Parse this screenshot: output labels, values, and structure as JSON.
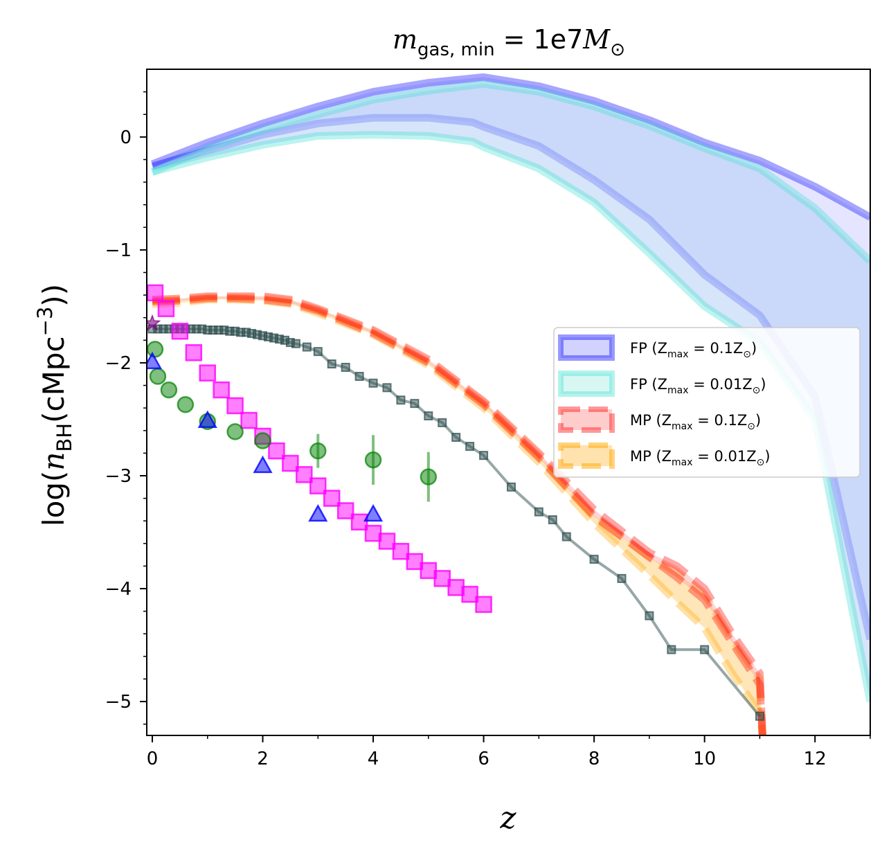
{
  "chart_data": {
    "type": "line",
    "title": "m_gas,min = 1e7 M⊙",
    "title_parts": {
      "m": "m",
      "sub": "gas, min",
      "eq": " = 1e7",
      "M": "M",
      "sun": "⊙"
    },
    "xlabel": "z",
    "ylabel": "log(n_BH(cMpc^-3))",
    "ylabel_parts": {
      "pre": "log(",
      "n": "n",
      "sub": "BH",
      "mid": "(cMpc",
      "sup": "−3",
      "post": "))"
    },
    "xlim": [
      -0.1,
      13.0
    ],
    "ylim": [
      -5.3,
      0.6
    ],
    "xticks": [
      0,
      2,
      4,
      6,
      8,
      10,
      12
    ],
    "xtick_labels": [
      "0",
      "2",
      "4",
      "6",
      "8",
      "10",
      "12"
    ],
    "yticks": [
      0,
      -1,
      -2,
      -3,
      -4,
      -5
    ],
    "ytick_labels": [
      "0",
      "−1",
      "−2",
      "−3",
      "−4",
      "−5"
    ],
    "legend": {
      "placement": "center-right",
      "entries": [
        {
          "prefix": "FP (Z",
          "sub": "max",
          "val": " = 0.1Z",
          "suf": "⊙",
          "close": ")",
          "color": "#0000ff"
        },
        {
          "prefix": "FP (Z",
          "sub": "max",
          "val": " = 0.01Z",
          "suf": "⊙",
          "close": ")",
          "color": "#40e0d0"
        },
        {
          "prefix": "MP (Z",
          "sub": "max",
          "val": " = 0.1Z",
          "suf": "⊙",
          "close": ")",
          "color": "#ff0000"
        },
        {
          "prefix": "MP (Z",
          "sub": "max",
          "val": " = 0.01Z",
          "suf": "⊙",
          "close": ")",
          "color": "#ffa500"
        }
      ]
    },
    "bands": [
      {
        "name": "FP (Zmax = 0.1Z⊙)",
        "color": "#0000ff",
        "fill_color": "#b4b4ff",
        "fill_opacity": 0.35,
        "upper": {
          "x": [
            0,
            1,
            2,
            3,
            4,
            5,
            6,
            7,
            8,
            9,
            10,
            11,
            12,
            13
          ],
          "y": [
            -0.24,
            -0.05,
            0.12,
            0.27,
            0.4,
            0.48,
            0.53,
            0.45,
            0.32,
            0.15,
            -0.05,
            -0.21,
            -0.44,
            -0.71
          ]
        },
        "lower": {
          "x": [
            0,
            1,
            2,
            3,
            4,
            5,
            5.8,
            6,
            7,
            8,
            9,
            10,
            11,
            12,
            13
          ],
          "y": [
            -0.26,
            -0.12,
            0.02,
            0.12,
            0.17,
            0.17,
            0.13,
            0.09,
            -0.08,
            -0.38,
            -0.73,
            -1.22,
            -1.58,
            -2.3,
            -4.45
          ]
        }
      },
      {
        "name": "FP (Zmax = 0.01Z⊙)",
        "color": "#40e0d0",
        "fill_color": "#b4d0f4",
        "fill_opacity": 0.55,
        "upper": {
          "x": [
            0,
            1,
            2,
            3,
            4,
            5,
            6,
            7,
            8,
            9,
            10,
            11,
            12,
            13
          ],
          "y": [
            -0.31,
            -0.1,
            0.06,
            0.2,
            0.33,
            0.41,
            0.47,
            0.4,
            0.27,
            0.1,
            -0.1,
            -0.28,
            -0.63,
            -1.1
          ]
        },
        "lower": {
          "x": [
            0,
            1,
            2,
            3,
            4,
            5,
            5.8,
            6,
            7,
            8,
            9,
            10,
            11,
            12,
            13
          ],
          "y": [
            -0.31,
            -0.18,
            -0.07,
            0.01,
            0.02,
            0.01,
            -0.04,
            -0.09,
            -0.28,
            -0.58,
            -1.03,
            -1.5,
            -1.82,
            -2.5,
            -5.0
          ]
        }
      },
      {
        "name": "MP (Zmax = 0.01Z⊙)",
        "color": "#ffa500",
        "fill_color": "#ffd58a",
        "fill_opacity": 0.6,
        "dashed": true,
        "upper": {
          "x": [
            0,
            0.5,
            1,
            1.5,
            2,
            2.5,
            3,
            4,
            5,
            6,
            7,
            8,
            9,
            9.5,
            10,
            10.5,
            11,
            11.05
          ],
          "y": [
            -1.45,
            -1.44,
            -1.42,
            -1.42,
            -1.42,
            -1.45,
            -1.53,
            -1.72,
            -1.99,
            -2.35,
            -2.82,
            -3.35,
            -3.72,
            -3.86,
            -4.05,
            -4.45,
            -4.8,
            -5.3
          ]
        },
        "lower": {
          "x": [
            0,
            0.5,
            1,
            1.5,
            2,
            2.5,
            3,
            4,
            5,
            6,
            7,
            8,
            9,
            9.5,
            10,
            10.5,
            11,
            11.05
          ],
          "y": [
            -1.48,
            -1.47,
            -1.44,
            -1.44,
            -1.45,
            -1.48,
            -1.56,
            -1.75,
            -2.02,
            -2.4,
            -2.88,
            -3.42,
            -3.88,
            -4.12,
            -4.35,
            -4.75,
            -5.1,
            -5.3
          ]
        }
      },
      {
        "name": "MP (Zmax = 0.1Z⊙)",
        "color": "#ff0000",
        "fill_color": "#ff9999",
        "fill_opacity": 0.4,
        "dashed": true,
        "upper": {
          "x": [
            0,
            0.5,
            1,
            1.5,
            2,
            2.5,
            3,
            4,
            5,
            6,
            7,
            8,
            9,
            9.5,
            10,
            10.5,
            11,
            11.05
          ],
          "y": [
            -1.44,
            -1.43,
            -1.41,
            -1.41,
            -1.41,
            -1.44,
            -1.52,
            -1.71,
            -1.97,
            -2.34,
            -2.8,
            -3.3,
            -3.68,
            -3.8,
            -4.0,
            -4.4,
            -4.75,
            -5.3
          ]
        },
        "lower": {
          "x": [
            0,
            0.5,
            1,
            1.5,
            2,
            2.5,
            3,
            4,
            5,
            6,
            7,
            8,
            9,
            9.5,
            10,
            10.5,
            11,
            11.05
          ],
          "y": [
            -1.46,
            -1.45,
            -1.43,
            -1.43,
            -1.44,
            -1.47,
            -1.54,
            -1.74,
            -2.0,
            -2.37,
            -2.84,
            -3.36,
            -3.72,
            -3.9,
            -4.1,
            -4.48,
            -4.85,
            -5.3
          ]
        }
      }
    ],
    "series": [
      {
        "name": "dark grey squares line",
        "color": "#2f4f4f",
        "marker": "square-small",
        "x": [
          0,
          0.1,
          0.2,
          0.3,
          0.4,
          0.5,
          0.6,
          0.7,
          0.8,
          0.9,
          1.0,
          1.1,
          1.2,
          1.3,
          1.4,
          1.5,
          1.6,
          1.7,
          1.8,
          1.9,
          2.0,
          2.1,
          2.2,
          2.3,
          2.4,
          2.5,
          2.6,
          2.8,
          3.0,
          3.25,
          3.5,
          3.75,
          4.0,
          4.25,
          4.5,
          4.75,
          5.0,
          5.25,
          5.5,
          5.75,
          6.0,
          6.5,
          7.0,
          7.25,
          7.5,
          8.0,
          8.5,
          9.0,
          9.4,
          10.0,
          11.0
        ],
        "y": [
          -1.7,
          -1.7,
          -1.7,
          -1.7,
          -1.7,
          -1.7,
          -1.7,
          -1.7,
          -1.7,
          -1.7,
          -1.71,
          -1.71,
          -1.71,
          -1.71,
          -1.72,
          -1.72,
          -1.73,
          -1.73,
          -1.74,
          -1.75,
          -1.76,
          -1.77,
          -1.78,
          -1.79,
          -1.8,
          -1.82,
          -1.83,
          -1.86,
          -1.9,
          -2.01,
          -2.04,
          -2.12,
          -2.18,
          -2.22,
          -2.33,
          -2.36,
          -2.47,
          -2.53,
          -2.66,
          -2.74,
          -2.82,
          -3.1,
          -3.32,
          -3.39,
          -3.54,
          -3.74,
          -3.91,
          -4.24,
          -4.54,
          -4.54,
          -5.13
        ]
      },
      {
        "name": "magenta squares",
        "color": "#ff00ff",
        "marker": "square-large",
        "x": [
          0.05,
          0.25,
          0.5,
          0.75,
          1.0,
          1.25,
          1.5,
          1.75,
          2.0,
          2.25,
          2.5,
          2.75,
          3.0,
          3.25,
          3.5,
          3.75,
          4.0,
          4.25,
          4.5,
          4.75,
          5.0,
          5.25,
          5.5,
          5.75,
          6.0
        ],
        "y": [
          -1.38,
          -1.52,
          -1.72,
          -1.91,
          -2.09,
          -2.24,
          -2.38,
          -2.51,
          -2.65,
          -2.78,
          -2.89,
          -2.99,
          -3.09,
          -3.2,
          -3.31,
          -3.41,
          -3.51,
          -3.58,
          -3.67,
          -3.76,
          -3.84,
          -3.91,
          -3.99,
          -4.05,
          -4.14
        ]
      },
      {
        "name": "green circles",
        "color": "#008000",
        "marker": "circle",
        "x": [
          0.05,
          0.1,
          0.3,
          0.6,
          1.0,
          1.5,
          2.0,
          3.0,
          4.0,
          5.0
        ],
        "y": [
          -1.88,
          -2.12,
          -2.24,
          -2.37,
          -2.52,
          -2.61,
          -2.69,
          -2.78,
          -2.86,
          -3.01
        ],
        "yerr": [
          0,
          0,
          0,
          0,
          0,
          0,
          0,
          0.15,
          0.22,
          0.22
        ]
      },
      {
        "name": "blue triangles",
        "color": "#0000ff",
        "marker": "triangle",
        "x": [
          0.0,
          1.0,
          2.0,
          3.0,
          4.0
        ],
        "y": [
          -1.99,
          -2.51,
          -2.91,
          -3.34,
          -3.34
        ]
      },
      {
        "name": "purple star",
        "color": "#800080",
        "marker": "star",
        "x": [
          0.0
        ],
        "y": [
          -1.65
        ]
      }
    ]
  }
}
